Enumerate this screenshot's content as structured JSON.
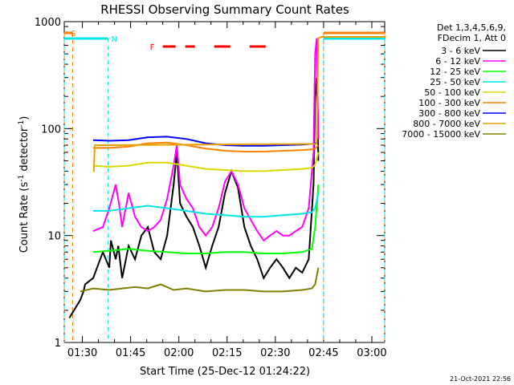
{
  "chart_data": {
    "type": "line",
    "title": "RHESSI Observing Summary Count Rates",
    "xlabel": "Start Time (25-Dec-12 01:24:22)",
    "ylabel_main": "Count Rate (s",
    "ylabel_sup1": "-1",
    "ylabel_mid": " detector",
    "ylabel_sup2": "-1",
    "ylabel_end": ")",
    "yscale": "log",
    "ylim": [
      1,
      1000
    ],
    "xlim": [
      "01:24:22",
      "03:04:00"
    ],
    "x_ticks": [
      "01:30",
      "01:45",
      "02:00",
      "02:15",
      "02:30",
      "02:45",
      "03:00"
    ],
    "y_ticks": [
      "1",
      "10",
      "100",
      "1000"
    ],
    "legend_header": [
      "Det 1,3,4,5,6,9,",
      "FDecim 1, Att 0"
    ],
    "timestamp": "21-Oct-2021 22:56",
    "flags": [
      {
        "label": "S",
        "color": "#ff8000",
        "intervals": [
          [
            "01:24:22",
            "01:27:00"
          ],
          [
            "02:45:00",
            "03:04:00"
          ]
        ]
      },
      {
        "label": "N",
        "color": "#00e5e5",
        "intervals": [
          [
            "01:24:22",
            "01:38:00"
          ],
          [
            "02:45:00",
            "03:04:00"
          ]
        ]
      },
      {
        "label": "F",
        "color": "#ff0000",
        "intervals": [
          [
            "01:55:00",
            "01:59:00"
          ],
          [
            "02:02:00",
            "02:05:00"
          ],
          [
            "02:11:00",
            "02:16:00"
          ],
          [
            "02:22:00",
            "02:27:00"
          ]
        ]
      }
    ],
    "series": [
      {
        "name": "3 - 6 keV",
        "color": "#000000",
        "values": [
          [
            1.6,
            1.7
          ],
          [
            5,
            2.5
          ],
          [
            6,
            3
          ],
          [
            6.5,
            3.5
          ],
          [
            9,
            4
          ],
          [
            12,
            7
          ],
          [
            14,
            5
          ],
          [
            14.5,
            9
          ],
          [
            16,
            6
          ],
          [
            16.8,
            8
          ],
          [
            18,
            4
          ],
          [
            20,
            8
          ],
          [
            22,
            6
          ],
          [
            24,
            10
          ],
          [
            26,
            12
          ],
          [
            28,
            7
          ],
          [
            30,
            6
          ],
          [
            32,
            10
          ],
          [
            34,
            30
          ],
          [
            35,
            60
          ],
          [
            36,
            20
          ],
          [
            38,
            15
          ],
          [
            40,
            12
          ],
          [
            42,
            8
          ],
          [
            44,
            5
          ],
          [
            46,
            8
          ],
          [
            48,
            12
          ],
          [
            50,
            25
          ],
          [
            52,
            40
          ],
          [
            54,
            28
          ],
          [
            56,
            12
          ],
          [
            58,
            8
          ],
          [
            60,
            6
          ],
          [
            62,
            4
          ],
          [
            64,
            5
          ],
          [
            66,
            6
          ],
          [
            68,
            5
          ],
          [
            70,
            4
          ],
          [
            72,
            5
          ],
          [
            74,
            4.5
          ],
          [
            76,
            6
          ],
          [
            77.5,
            30
          ],
          [
            78,
            200
          ],
          [
            78.5,
            300
          ],
          [
            79,
            50
          ]
        ]
      },
      {
        "name": "6 - 12 keV",
        "color": "#ff00ff",
        "values": [
          [
            9,
            11
          ],
          [
            12,
            12
          ],
          [
            14,
            18
          ],
          [
            16,
            30
          ],
          [
            17,
            20
          ],
          [
            18,
            12
          ],
          [
            20,
            25
          ],
          [
            22,
            15
          ],
          [
            24,
            12
          ],
          [
            26,
            11
          ],
          [
            28,
            12
          ],
          [
            30,
            14
          ],
          [
            32,
            22
          ],
          [
            34,
            45
          ],
          [
            35,
            70
          ],
          [
            36,
            30
          ],
          [
            38,
            22
          ],
          [
            40,
            18
          ],
          [
            42,
            12
          ],
          [
            44,
            10
          ],
          [
            46,
            12
          ],
          [
            48,
            18
          ],
          [
            50,
            32
          ],
          [
            52,
            40
          ],
          [
            54,
            30
          ],
          [
            56,
            18
          ],
          [
            58,
            14
          ],
          [
            60,
            11
          ],
          [
            62,
            9
          ],
          [
            64,
            10
          ],
          [
            66,
            11
          ],
          [
            68,
            10
          ],
          [
            70,
            10
          ],
          [
            72,
            11
          ],
          [
            74,
            12
          ],
          [
            76,
            18
          ],
          [
            77.5,
            60
          ],
          [
            78,
            500
          ],
          [
            78.5,
            700
          ],
          [
            79,
            80
          ]
        ]
      },
      {
        "name": "12 - 25 keV",
        "color": "#00ff00",
        "values": [
          [
            9,
            7
          ],
          [
            14,
            7.2
          ],
          [
            20,
            7.5
          ],
          [
            26,
            7.2
          ],
          [
            32,
            7
          ],
          [
            38,
            6.8
          ],
          [
            44,
            6.8
          ],
          [
            50,
            7
          ],
          [
            56,
            7
          ],
          [
            62,
            6.8
          ],
          [
            68,
            6.8
          ],
          [
            74,
            7
          ],
          [
            77,
            7.5
          ],
          [
            78,
            12
          ],
          [
            79,
            30
          ]
        ]
      },
      {
        "name": "25 - 50 keV",
        "color": "#00e5e5",
        "values": [
          [
            9,
            17
          ],
          [
            14,
            17
          ],
          [
            20,
            18
          ],
          [
            26,
            19
          ],
          [
            32,
            18
          ],
          [
            38,
            17
          ],
          [
            44,
            16
          ],
          [
            50,
            15.5
          ],
          [
            56,
            15
          ],
          [
            62,
            15
          ],
          [
            68,
            15.5
          ],
          [
            74,
            16
          ],
          [
            77,
            16.5
          ],
          [
            78,
            18
          ],
          [
            79,
            25
          ]
        ]
      },
      {
        "name": "50 - 100 keV",
        "color": "#d8d800",
        "values": [
          [
            9,
            45
          ],
          [
            14,
            44
          ],
          [
            20,
            45
          ],
          [
            26,
            48
          ],
          [
            32,
            48
          ],
          [
            38,
            45
          ],
          [
            44,
            42
          ],
          [
            50,
            41
          ],
          [
            56,
            40
          ],
          [
            62,
            40
          ],
          [
            68,
            41
          ],
          [
            74,
            42
          ],
          [
            77,
            43
          ],
          [
            78,
            46
          ],
          [
            79,
            60
          ]
        ]
      },
      {
        "name": "100 - 300 keV",
        "color": "#ff8000",
        "values": [
          [
            9,
            66
          ],
          [
            14,
            66
          ],
          [
            20,
            68
          ],
          [
            26,
            73
          ],
          [
            32,
            74
          ],
          [
            38,
            70
          ],
          [
            44,
            65
          ],
          [
            50,
            62
          ],
          [
            56,
            61
          ],
          [
            62,
            61
          ],
          [
            68,
            62
          ],
          [
            74,
            63
          ],
          [
            77,
            64
          ],
          [
            78,
            65
          ],
          [
            79,
            70
          ]
        ]
      },
      {
        "name": "300 - 800 keV",
        "color": "#0000ff",
        "values": [
          [
            9,
            78
          ],
          [
            14,
            77
          ],
          [
            20,
            78
          ],
          [
            26,
            83
          ],
          [
            32,
            84
          ],
          [
            38,
            80
          ],
          [
            44,
            73
          ],
          [
            50,
            70
          ],
          [
            56,
            69
          ],
          [
            62,
            69
          ],
          [
            68,
            70
          ],
          [
            74,
            71
          ],
          [
            77,
            72
          ],
          [
            78,
            72
          ],
          [
            79,
            75
          ]
        ]
      },
      {
        "name": "800 - 7000 keV",
        "color": "#e8a000",
        "values": [
          [
            9,
            40
          ],
          [
            9.2,
            40
          ],
          [
            9.5,
            70
          ],
          [
            78.5,
            72
          ],
          [
            79,
            700
          ],
          [
            80,
            720
          ],
          [
            100,
            720
          ]
        ]
      },
      {
        "name": "7000 - 15000 keV",
        "color": "#808000",
        "values": [
          [
            5,
            3
          ],
          [
            9,
            3.2
          ],
          [
            14,
            3.1
          ],
          [
            18,
            3.2
          ],
          [
            22,
            3.3
          ],
          [
            26,
            3.2
          ],
          [
            30,
            3.5
          ],
          [
            34,
            3.1
          ],
          [
            38,
            3.2
          ],
          [
            44,
            3
          ],
          [
            50,
            3.1
          ],
          [
            56,
            3.1
          ],
          [
            62,
            3
          ],
          [
            68,
            3
          ],
          [
            74,
            3.1
          ],
          [
            77,
            3.2
          ],
          [
            78,
            3.5
          ],
          [
            79,
            5
          ]
        ]
      }
    ],
    "grid": false,
    "legend_placement": "right"
  }
}
